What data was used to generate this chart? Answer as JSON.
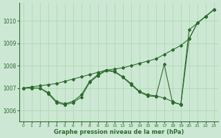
{
  "background_color": "#cce8d4",
  "grid_color": "#aad4aa",
  "line_color": "#2d6a2d",
  "xlabel": "Graphe pression niveau de la mer (hPa)",
  "ylim": [
    1005.5,
    1010.8
  ],
  "xlim": [
    -0.5,
    23.5
  ],
  "yticks": [
    1006,
    1007,
    1008,
    1009,
    1010
  ],
  "xticks": [
    0,
    1,
    2,
    3,
    4,
    5,
    6,
    7,
    8,
    9,
    10,
    11,
    12,
    13,
    14,
    15,
    16,
    17,
    18,
    19,
    20,
    21,
    22,
    23
  ],
  "series": [
    [
      1007.0,
      1007.05,
      1007.1,
      1007.15,
      1007.2,
      1007.3,
      1007.4,
      1007.5,
      1007.6,
      1007.7,
      1007.8,
      1007.85,
      1007.9,
      1008.0,
      1008.1,
      1008.2,
      1008.3,
      1008.5,
      1008.7,
      1008.9,
      1009.2,
      1009.9,
      1010.2,
      1010.5
    ],
    [
      1007.0,
      1007.0,
      1007.0,
      1006.8,
      1006.4,
      1006.3,
      1006.4,
      1006.7,
      1007.3,
      1007.6,
      1007.8,
      1007.75,
      1007.5,
      1007.2,
      1006.85,
      1006.7,
      1006.65,
      1006.55,
      1006.4,
      1006.25,
      1009.2,
      1009.9,
      1010.2,
      1010.5
    ],
    [
      1007.0,
      1007.0,
      1007.0,
      1006.75,
      1006.35,
      1006.25,
      1006.35,
      1006.6,
      1007.25,
      1007.55,
      1007.78,
      1007.72,
      1007.48,
      1007.15,
      1006.82,
      1006.65,
      1006.62,
      1008.05,
      1006.35,
      1006.28,
      1009.6,
      1009.9,
      1010.2,
      1010.5
    ]
  ]
}
